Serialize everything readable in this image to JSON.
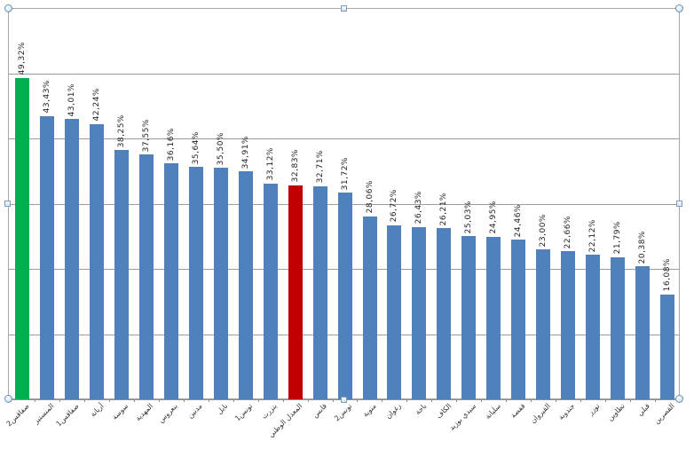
{
  "chart_data": {
    "type": "bar",
    "title": "",
    "xlabel": "",
    "ylabel": "",
    "categories": [
      "صفاقس2",
      "المنستير",
      "صفاقس1",
      "أريانة",
      "سوسة",
      "المهدية",
      "بنعروس",
      "مدنين",
      "نابل",
      "تونس1",
      "بنزرت",
      "المعدل الوطني",
      "قابس",
      "تونس2",
      "منوبة",
      "زغوان",
      "باجة",
      "الكاف",
      "سيدي بوزيد",
      "سليانة",
      "قفصة",
      "القيروان",
      "جندوبة",
      "توزر",
      "تطاوين",
      "قبلي",
      "القصرين"
    ],
    "values": [
      49.32,
      43.43,
      43.01,
      42.24,
      38.25,
      37.55,
      36.16,
      35.64,
      35.5,
      34.91,
      33.12,
      32.83,
      32.71,
      31.72,
      28.06,
      26.72,
      26.43,
      26.21,
      25.03,
      24.95,
      24.46,
      23.0,
      22.66,
      22.12,
      21.79,
      20.38,
      16.08
    ],
    "value_labels": [
      "49,32%",
      "43,43%",
      "43,01%",
      "42,24%",
      "38,25%",
      "37,55%",
      "36,16%",
      "35,64%",
      "35,50%",
      "34,91%",
      "33,12%",
      "32,83%",
      "32,71%",
      "31,72%",
      "28,06%",
      "26,72%",
      "26,43%",
      "26,21%",
      "25,03%",
      "24,95%",
      "24,46%",
      "23,00%",
      "22,66%",
      "22,12%",
      "21,79%",
      "20,38%",
      "16,08%"
    ],
    "ylim": [
      0,
      60
    ],
    "gridline_step": 10,
    "grid": true,
    "legend": "none",
    "bar_default_color": "#4F81BD",
    "highlights": [
      {
        "index": 0,
        "color": "#00B050"
      },
      {
        "index": 11,
        "color": "#C00000"
      }
    ]
  },
  "colors": {
    "background": "#FFFFFF",
    "gridline": "#9C9C9C",
    "axis": "#8C8C8C",
    "label_text": "#1F1F1F",
    "selection_border": "#A6A6A6",
    "handle_fill": "#D8ECF9",
    "handle_border": "#7F9DB9"
  }
}
